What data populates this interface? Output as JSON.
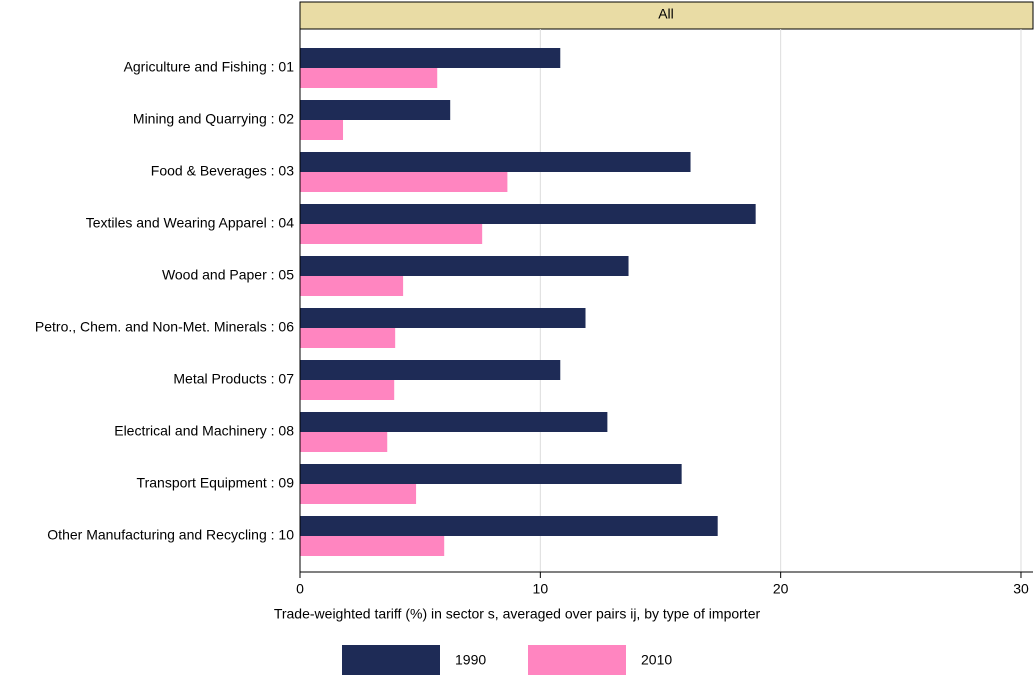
{
  "chart_data": {
    "type": "hbar",
    "panel_title": "All",
    "categories": [
      "Agriculture and Fishing : 01",
      "Mining and Quarrying : 02",
      "Food & Beverages : 03",
      "Textiles and Wearing Apparel : 04",
      "Wood and Paper : 05",
      "Petro., Chem. and Non-Met. Minerals : 06",
      "Metal Products : 07",
      "Electrical and Machinery : 08",
      "Transport Equipment : 09",
      "Other Manufacturing and Recycling : 10"
    ],
    "series": [
      {
        "name": "1990",
        "color": "#1e2b56",
        "values": [
          10.83,
          6.25,
          16.25,
          18.96,
          13.67,
          11.88,
          10.83,
          12.79,
          15.88,
          17.38
        ]
      },
      {
        "name": "2010",
        "color": "#ff85c0",
        "values": [
          5.71,
          1.79,
          8.63,
          7.58,
          4.29,
          3.96,
          3.92,
          3.63,
          4.83,
          6.0
        ]
      }
    ],
    "x_label": "Trade-weighted tariff (%) in sector s, averaged over pairs ij, by type of importer",
    "xlim": [
      0,
      30.5
    ],
    "xticks": [
      0,
      10,
      20,
      30
    ],
    "grid": true
  }
}
